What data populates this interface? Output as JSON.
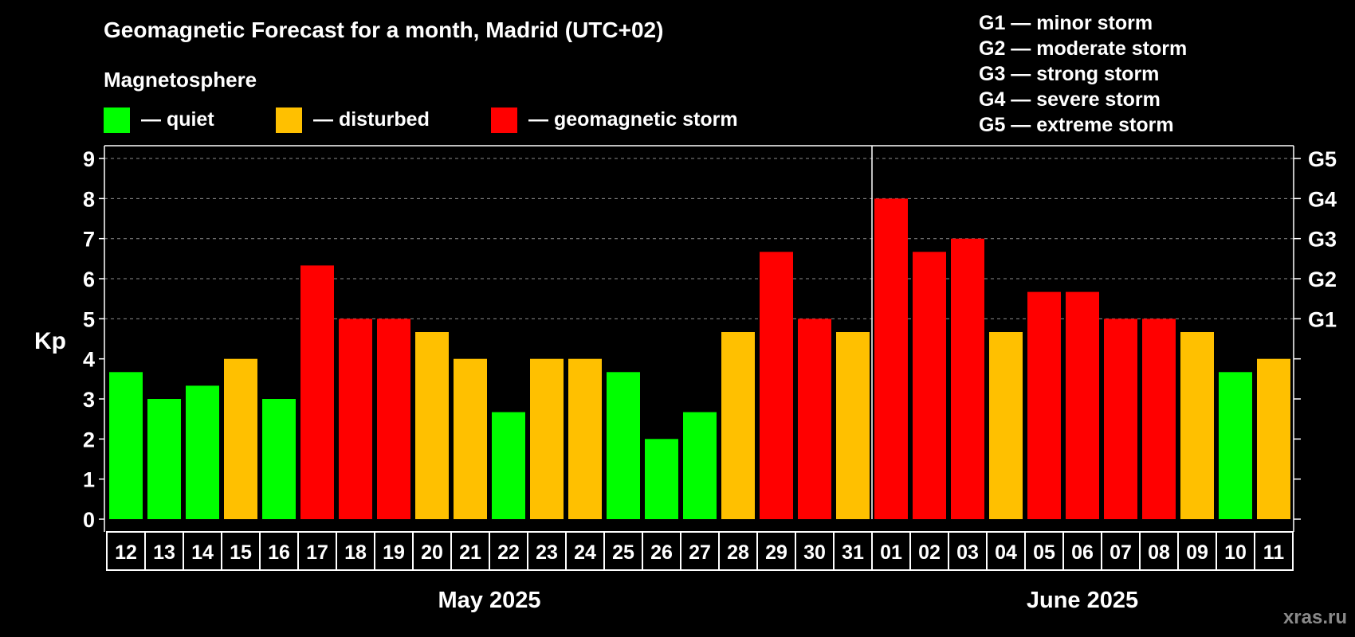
{
  "chart_data": {
    "type": "bar",
    "title": "Geomagnetic Forecast for a month, Madrid (UTC+02)",
    "ylabel": "Kp",
    "ylim": [
      0,
      9
    ],
    "yticks": [
      "0",
      "1",
      "2",
      "3",
      "4",
      "5",
      "6",
      "7",
      "8",
      "9"
    ],
    "gscale": [
      {
        "kp": 5,
        "label": "G1"
      },
      {
        "kp": 6,
        "label": "G2"
      },
      {
        "kp": 7,
        "label": "G3"
      },
      {
        "kp": 8,
        "label": "G4"
      },
      {
        "kp": 9,
        "label": "G5"
      }
    ],
    "legend": {
      "title": "Magnetosphere",
      "items": [
        {
          "key": "quiet",
          "label": "— quiet",
          "color": "#00ff00"
        },
        {
          "key": "disturbed",
          "label": "— disturbed",
          "color": "#ffc000"
        },
        {
          "key": "storm",
          "label": "— geomagnetic storm",
          "color": "#ff0000"
        }
      ]
    },
    "storm_legend": [
      "G1 — minor storm",
      "G2 — moderate storm",
      "G3 — strong storm",
      "G4 — severe storm",
      "G5 — extreme storm"
    ],
    "months": [
      {
        "label": "May 2025",
        "start": 0,
        "count": 20
      },
      {
        "label": "June 2025",
        "start": 20,
        "count": 11
      }
    ],
    "categories": [
      "12",
      "13",
      "14",
      "15",
      "16",
      "17",
      "18",
      "19",
      "20",
      "21",
      "22",
      "23",
      "24",
      "25",
      "26",
      "27",
      "28",
      "29",
      "30",
      "31",
      "01",
      "02",
      "03",
      "04",
      "05",
      "06",
      "07",
      "08",
      "09",
      "10",
      "11"
    ],
    "values": [
      3.67,
      3.0,
      3.33,
      4.0,
      3.0,
      6.33,
      5.0,
      5.0,
      4.67,
      4.0,
      2.67,
      4.0,
      4.0,
      3.67,
      2.0,
      2.67,
      4.67,
      6.67,
      5.0,
      4.67,
      8.0,
      6.67,
      7.0,
      4.67,
      5.67,
      5.67,
      5.0,
      5.0,
      4.67,
      3.67,
      4.0
    ],
    "levels": [
      "quiet",
      "quiet",
      "quiet",
      "disturbed",
      "quiet",
      "storm",
      "storm",
      "storm",
      "disturbed",
      "disturbed",
      "quiet",
      "disturbed",
      "disturbed",
      "quiet",
      "quiet",
      "quiet",
      "disturbed",
      "storm",
      "storm",
      "disturbed",
      "storm",
      "storm",
      "storm",
      "disturbed",
      "storm",
      "storm",
      "storm",
      "storm",
      "disturbed",
      "quiet",
      "disturbed"
    ]
  },
  "watermark": "xras.ru"
}
